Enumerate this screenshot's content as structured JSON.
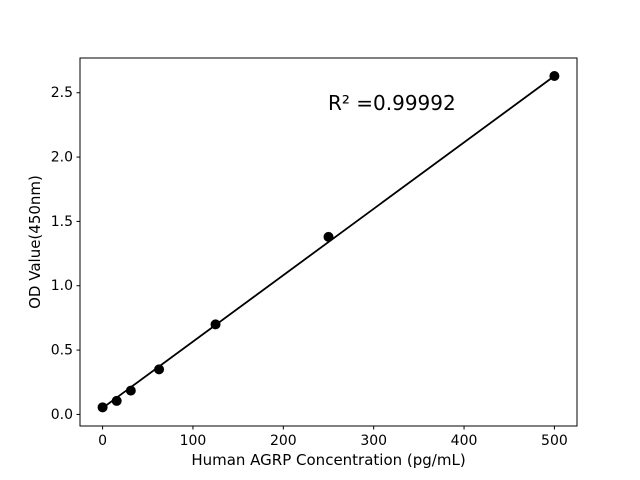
{
  "chart_data": {
    "type": "scatter",
    "title": "",
    "xlabel": "Human AGRP Concentration (pg/mL)",
    "ylabel": "OD Value(450nm)",
    "annotation": "R² =0.99992",
    "x": [
      0,
      15.6,
      31.25,
      62.5,
      125,
      250,
      500
    ],
    "y": [
      0.055,
      0.105,
      0.185,
      0.35,
      0.7,
      1.38,
      2.63
    ],
    "fit_line": {
      "x": [
        0,
        500
      ],
      "y": [
        0.05,
        2.63
      ]
    },
    "xticks": [
      0,
      100,
      200,
      300,
      400,
      500
    ],
    "xtick_labels": [
      "0",
      "100",
      "200",
      "300",
      "400",
      "500"
    ],
    "yticks": [
      0.0,
      0.5,
      1.0,
      1.5,
      2.0,
      2.5
    ],
    "ytick_labels": [
      "0.0",
      "0.5",
      "1.0",
      "1.5",
      "2.0",
      "2.5"
    ],
    "xlim": [
      -25,
      525
    ],
    "ylim": [
      -0.09,
      2.77
    ],
    "grid": false,
    "legend": null,
    "background_color": "#ffffff",
    "marker_color": "#000000",
    "line_color": "#000000",
    "axis_color": "#000000"
  }
}
